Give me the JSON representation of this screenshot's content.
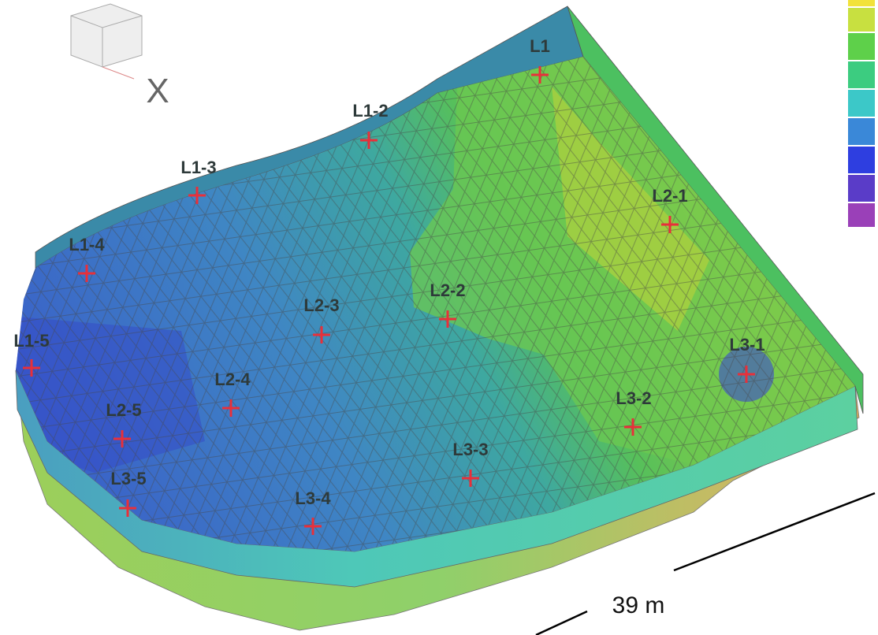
{
  "axis_label": "X",
  "scale_label": "39 m",
  "points": [
    {
      "label": "L1"
    },
    {
      "label": "L1-2"
    },
    {
      "label": "L1-3"
    },
    {
      "label": "L1-4"
    },
    {
      "label": "L1-5"
    },
    {
      "label": "L2-1"
    },
    {
      "label": "L2-2"
    },
    {
      "label": "L2-3"
    },
    {
      "label": "L2-4"
    },
    {
      "label": "L2-5"
    },
    {
      "label": "L3-1"
    },
    {
      "label": "L3-2"
    },
    {
      "label": "L3-3"
    },
    {
      "label": "L3-4"
    },
    {
      "label": "L3-5"
    }
  ]
}
